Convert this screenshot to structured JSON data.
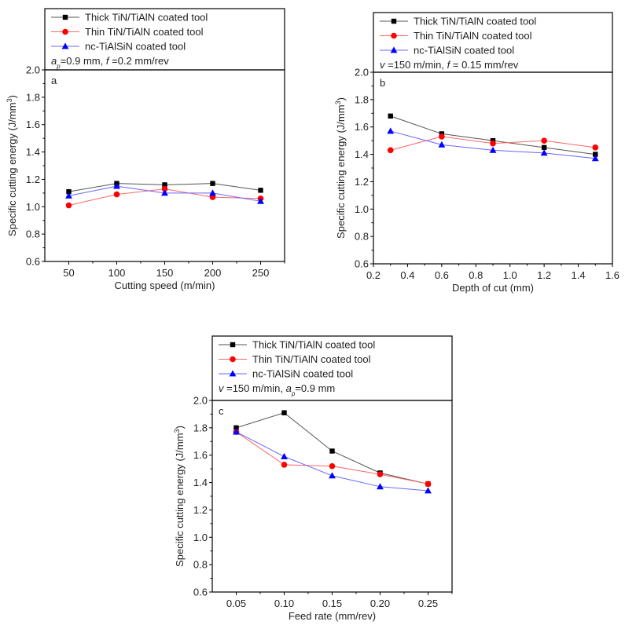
{
  "chart_data": [
    {
      "type": "line",
      "panel_label": "a",
      "xlabel": "Cutting speed (m/min)",
      "ylabel": "Specific cutting energy (J/mm",
      "ylabel_sup": "3",
      "ylabel_end": ")",
      "xlim": [
        25,
        275
      ],
      "ylim": [
        0.6,
        2.0
      ],
      "xticks": [
        50,
        100,
        150,
        200,
        250
      ],
      "xtick_labels": [
        "50",
        "100",
        "150",
        "200",
        "250"
      ],
      "xminor": [
        75,
        125,
        175,
        225,
        275
      ],
      "yticks": [
        0.6,
        0.8,
        1.0,
        1.2,
        1.4,
        1.6,
        1.8,
        2.0
      ],
      "ytick_labels": [
        "0.6",
        "0.8",
        "1.0",
        "1.2",
        "1.4",
        "1.6",
        "1.8",
        "2.0"
      ],
      "condition": {
        "parts": [
          [
            "a",
            "italic"
          ],
          [
            "p",
            "sub-italic"
          ],
          [
            "=0.9 mm, ",
            "normal"
          ],
          [
            "f",
            "italic"
          ],
          [
            " =0.2 mm/rev",
            "normal"
          ]
        ]
      },
      "x": [
        50,
        100,
        150,
        200,
        250
      ],
      "series": [
        {
          "name": "Thick TiN/TiAlN coated tool",
          "color": "#000000",
          "line_color": "#555555",
          "marker": "square",
          "values": [
            1.11,
            1.17,
            1.16,
            1.17,
            1.12
          ]
        },
        {
          "name": "Thin TiN/TiAlN coated tool",
          "color": "#ff0000",
          "line_color": "#ff6666",
          "marker": "circle",
          "values": [
            1.01,
            1.09,
            1.13,
            1.07,
            1.06
          ]
        },
        {
          "name": "nc-TiAlSiN coated tool",
          "color": "#0000ff",
          "line_color": "#6666ff",
          "marker": "triangle",
          "values": [
            1.08,
            1.15,
            1.1,
            1.1,
            1.04
          ]
        }
      ],
      "grid": false,
      "legend": "top"
    },
    {
      "type": "line",
      "panel_label": "b",
      "xlabel": "Depth of cut (mm)",
      "ylabel": "Specific cutting energy (J/mm",
      "ylabel_sup": "3",
      "ylabel_end": ")",
      "xlim": [
        0.2,
        1.6
      ],
      "ylim": [
        0.6,
        2.0
      ],
      "xticks": [
        0.2,
        0.4,
        0.6,
        0.8,
        1.0,
        1.2,
        1.4,
        1.6
      ],
      "xtick_labels": [
        "0.2",
        "0.4",
        "0.6",
        "0.8",
        "1.0",
        "1.2",
        "1.4",
        "1.6"
      ],
      "xminor": [
        0.3,
        0.5,
        0.7,
        0.9,
        1.1,
        1.3,
        1.5
      ],
      "yticks": [
        0.6,
        0.8,
        1.0,
        1.2,
        1.4,
        1.6,
        1.8,
        2.0
      ],
      "ytick_labels": [
        "0.6",
        "0.8",
        "1.0",
        "1.2",
        "1.4",
        "1.6",
        "1.8",
        "2.0"
      ],
      "condition": {
        "parts": [
          [
            "v",
            "italic"
          ],
          [
            " =150 m/min, ",
            "normal"
          ],
          [
            "f",
            "italic"
          ],
          [
            " = 0.15 mm/rev",
            "normal"
          ]
        ]
      },
      "x": [
        0.3,
        0.6,
        0.9,
        1.2,
        1.5
      ],
      "series": [
        {
          "name": "Thick TiN/TiAlN coated tool",
          "color": "#000000",
          "line_color": "#555555",
          "marker": "square",
          "values": [
            1.68,
            1.55,
            1.5,
            1.45,
            1.4
          ]
        },
        {
          "name": "Thin TiN/TiAlN coated tool",
          "color": "#ff0000",
          "line_color": "#ff6666",
          "marker": "circle",
          "values": [
            1.43,
            1.53,
            1.48,
            1.5,
            1.45
          ]
        },
        {
          "name": "nc-TiAlSiN coated tool",
          "color": "#0000ff",
          "line_color": "#6666ff",
          "marker": "triangle",
          "values": [
            1.57,
            1.47,
            1.43,
            1.41,
            1.37
          ]
        }
      ],
      "grid": false,
      "legend": "top"
    },
    {
      "type": "line",
      "panel_label": "c",
      "xlabel": "Feed rate (mm/rev)",
      "ylabel": "Specific cutting energy (J/mm",
      "ylabel_sup": "3",
      "ylabel_end": ")",
      "xlim": [
        0.025,
        0.275
      ],
      "ylim": [
        0.6,
        2.0
      ],
      "xticks": [
        0.05,
        0.1,
        0.15,
        0.2,
        0.25
      ],
      "xtick_labels": [
        "0.05",
        "0.10",
        "0.15",
        "0.20",
        "0.25"
      ],
      "xminor": [
        0.075,
        0.125,
        0.175,
        0.225,
        0.275
      ],
      "yticks": [
        0.6,
        0.8,
        1.0,
        1.2,
        1.4,
        1.6,
        1.8,
        2.0
      ],
      "ytick_labels": [
        "0.6",
        "0.8",
        "1.0",
        "1.2",
        "1.4",
        "1.6",
        "1.8",
        "2.0"
      ],
      "condition": {
        "parts": [
          [
            "v",
            "italic"
          ],
          [
            " =150 m/min, ",
            "normal"
          ],
          [
            "a",
            "italic"
          ],
          [
            "p",
            "sub-italic"
          ],
          [
            "=0.9 mm",
            "normal"
          ]
        ]
      },
      "x": [
        0.05,
        0.1,
        0.15,
        0.2,
        0.25
      ],
      "series": [
        {
          "name": "Thick TiN/TiAlN coated tool",
          "color": "#000000",
          "line_color": "#555555",
          "marker": "square",
          "values": [
            1.8,
            1.91,
            1.63,
            1.47,
            1.39
          ]
        },
        {
          "name": "Thin TiN/TiAlN coated tool",
          "color": "#ff0000",
          "line_color": "#ff6666",
          "marker": "circle",
          "values": [
            1.77,
            1.53,
            1.52,
            1.46,
            1.39
          ]
        },
        {
          "name": "nc-TiAlSiN coated tool",
          "color": "#0000ff",
          "line_color": "#6666ff",
          "marker": "triangle",
          "values": [
            1.77,
            1.59,
            1.45,
            1.37,
            1.34
          ]
        }
      ],
      "grid": false,
      "legend": "top"
    }
  ]
}
